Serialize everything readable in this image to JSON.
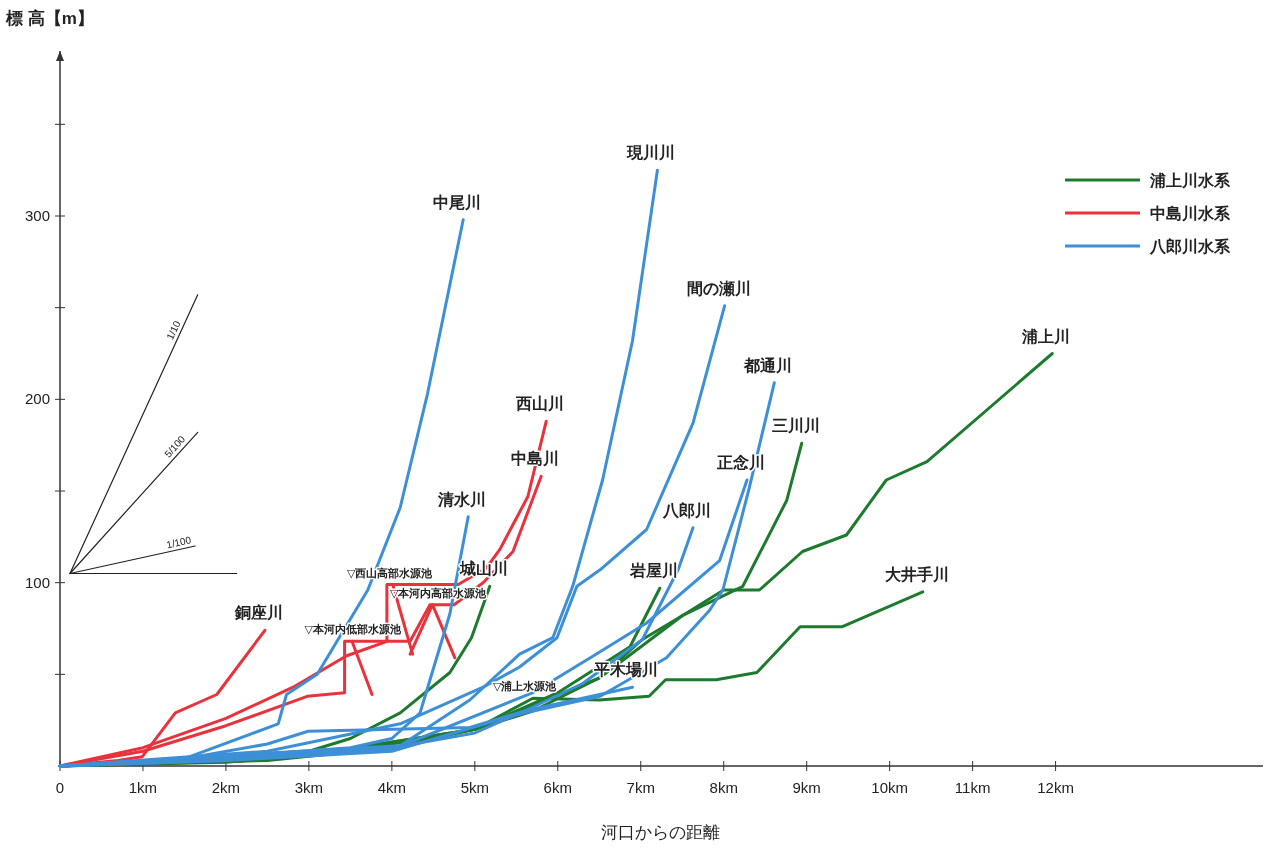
{
  "chart_data": {
    "type": "line",
    "xlabel": "河口からの距離",
    "ylabel": "標 高【m】",
    "xlim": [
      0,
      14.5
    ],
    "ylim": [
      0,
      390
    ],
    "xticks": [
      {
        "value": 0,
        "label": "0"
      },
      {
        "value": 1,
        "label": "1km"
      },
      {
        "value": 2,
        "label": "2km"
      },
      {
        "value": 3,
        "label": "3km"
      },
      {
        "value": 4,
        "label": "4km"
      },
      {
        "value": 5,
        "label": "5km"
      },
      {
        "value": 6,
        "label": "6km"
      },
      {
        "value": 7,
        "label": "7km"
      },
      {
        "value": 8,
        "label": "8km"
      },
      {
        "value": 9,
        "label": "9km"
      },
      {
        "value": 10,
        "label": "10km"
      },
      {
        "value": 11,
        "label": "11km"
      },
      {
        "value": 12,
        "label": "12km"
      }
    ],
    "yticks": [
      {
        "value": 50,
        "label": null
      },
      100,
      {
        "value": 150,
        "label": null
      },
      200,
      {
        "value": 250,
        "label": null
      },
      300,
      {
        "value": 350,
        "label": null
      }
    ],
    "grid": false,
    "legend": "top right",
    "line_style": "solid",
    "marker": "none",
    "series": [
      {
        "name": "浦上川水系",
        "color": "#1e7a2e"
      },
      {
        "name": "中島川水系",
        "color": "#e8323c"
      },
      {
        "name": "八郎川水系",
        "color": "#3d8fd6"
      },
      {
        "name": "浦上川",
        "color": "#1e7a2e",
        "x": [
          0,
          2,
          3,
          4,
          5,
          5.7,
          6.5,
          7.02,
          7.5,
          8.0,
          8.43,
          8.95,
          9.48,
          9.96,
          10.45,
          11.96
        ],
        "values": [
          0,
          2,
          6,
          12,
          20,
          30,
          48,
          69,
          82,
          96,
          96,
          117,
          126,
          156,
          166,
          225
        ]
      },
      {
        "name": "大井手川",
        "color": "#1e7a2e",
        "x": [
          0,
          2.5,
          4,
          5,
          5.7,
          6.5,
          7.1,
          7.3,
          7.91,
          8.4,
          8.92,
          9.43,
          10.4
        ],
        "values": [
          0,
          3,
          10,
          20,
          37,
          36,
          38,
          47,
          47,
          51,
          76,
          76,
          95
        ]
      },
      {
        "name": "城山川",
        "color": "#1e7a2e",
        "x": [
          0,
          3,
          3.5,
          4.1,
          4.7,
          4.96,
          5.18
        ],
        "values": [
          0,
          8,
          15,
          29,
          51,
          70,
          98
        ]
      },
      {
        "name": "岩屋川",
        "color": "#1e7a2e",
        "x": [
          0,
          3,
          5,
          6,
          6.87,
          7.23
        ],
        "values": [
          0,
          6,
          20,
          40,
          65,
          97
        ]
      },
      {
        "name": "三川川",
        "color": "#1e7a2e",
        "x": [
          0,
          3,
          5,
          6.5,
          7.5,
          8.23,
          8.76,
          8.94
        ],
        "values": [
          0,
          6,
          20,
          48,
          82,
          98,
          145,
          176
        ]
      },
      {
        "name": "銅座川",
        "color": "#e8323c",
        "x": [
          0,
          0.7,
          0.99,
          1.39,
          1.89,
          2.47
        ],
        "values": [
          0,
          3,
          5,
          29,
          39,
          74
        ]
      },
      {
        "name": "西山川",
        "color": "#e8323c",
        "x": [
          0,
          1.0,
          2.0,
          2.81,
          3.45,
          3.94,
          3.94,
          4.8,
          5.14,
          5.3,
          5.64,
          5.86
        ],
        "values": [
          0,
          10,
          26,
          43,
          60,
          68,
          99,
          99,
          108,
          118,
          147,
          188
        ]
      },
      {
        "name": "中島川",
        "color": "#e8323c",
        "x": [
          0,
          1.0,
          2.0,
          2.98,
          3.43,
          3.43,
          4.22,
          4.46,
          4.75,
          5.1,
          5.46,
          5.8
        ],
        "values": [
          0,
          8,
          22,
          38,
          40,
          68,
          68,
          88,
          88,
          100,
          117,
          158
        ]
      },
      {
        "color": "#e8323c",
        "x": [
          3.52,
          3.76
        ],
        "values": [
          68,
          39
        ]
      },
      {
        "color": "#e8323c",
        "x": [
          4.01,
          4.25
        ],
        "values": [
          99,
          61
        ]
      },
      {
        "color": "#e8323c",
        "x": [
          4.22,
          4.49,
          4.76
        ],
        "values": [
          61,
          88,
          59
        ]
      },
      {
        "name": "中尾川",
        "color": "#3d8fd6",
        "x": [
          0,
          1.5,
          2.63,
          2.73,
          3.1,
          3.71,
          4.1,
          4.43,
          4.86
        ],
        "values": [
          0,
          4,
          23,
          39,
          50,
          96,
          141,
          203,
          298
        ]
      },
      {
        "name": "清水川",
        "color": "#3d8fd6",
        "x": [
          0,
          2,
          3.5,
          4.0,
          4.34,
          4.7,
          4.92
        ],
        "values": [
          0,
          5,
          10,
          15,
          29,
          83,
          136
        ]
      },
      {
        "name": "現川川",
        "color": "#3d8fd6",
        "x": [
          0,
          2.89,
          4.1,
          4.94,
          5.54,
          5.94,
          6.18,
          6.54,
          6.9,
          7.2
        ],
        "values": [
          0,
          8,
          11,
          36,
          61,
          70,
          98,
          156,
          232,
          325
        ]
      },
      {
        "name": "間の瀬川",
        "color": "#3d8fd6",
        "x": [
          0,
          2.5,
          4.1,
          5.1,
          5.54,
          5.99,
          6.23,
          6.51,
          7.07,
          7.63,
          8.01
        ],
        "values": [
          0,
          8,
          23,
          43,
          54,
          70,
          98,
          107,
          129,
          187,
          251
        ]
      },
      {
        "name": "八郎川",
        "color": "#3d8fd6",
        "x": [
          0,
          2,
          4,
          5,
          5.6,
          6.3,
          7.02,
          7.45,
          7.63
        ],
        "values": [
          0,
          4,
          10,
          18,
          30,
          45,
          69,
          107,
          130
        ]
      },
      {
        "name": "正念川",
        "color": "#3d8fd6",
        "x": [
          0,
          2,
          4,
          5.7,
          6.5,
          7.07,
          7.95,
          8.28
        ],
        "values": [
          0,
          3,
          9,
          40,
          62,
          78,
          112,
          156
        ]
      },
      {
        "name": "都通川",
        "color": "#3d8fd6",
        "x": [
          0,
          2,
          4,
          5.5,
          6.51,
          7.31,
          7.83,
          7.99,
          8.31,
          8.61
        ],
        "values": [
          0,
          3,
          8,
          28,
          38,
          59,
          85,
          96,
          152,
          209
        ]
      },
      {
        "name": "平木場川",
        "color": "#3d8fd6",
        "x": [
          0,
          1.5,
          2.5,
          2.99,
          4.94,
          5.6,
          6.9
        ],
        "values": [
          0,
          4,
          12,
          19,
          21,
          30,
          43
        ]
      },
      {
        "color": "#222222",
        "x": [
          0.12,
          1.66
        ],
        "values": [
          105,
          257
        ]
      },
      {
        "color": "#222222",
        "x": [
          0.12,
          1.66
        ],
        "values": [
          105,
          182
        ]
      },
      {
        "color": "#222222",
        "x": [
          0.12,
          1.63
        ],
        "values": [
          105,
          120
        ]
      },
      {
        "color": "#222222",
        "x": [
          0.12,
          2.13
        ],
        "values": [
          105,
          105
        ]
      }
    ],
    "annotations": [
      {
        "text": "1/10",
        "x": 1.45,
        "y": 236
      },
      {
        "text": "5/100",
        "x": 1.45,
        "y": 171.5
      },
      {
        "text": "1/100",
        "x": 1.45,
        "y": 118
      },
      {
        "text": "▽西山高部水源池",
        "x": 3.94,
        "y": 99
      },
      {
        "text": "▽本河内高部水源池",
        "x": 4.46,
        "y": 88
      },
      {
        "text": "▽本河内低部水源池",
        "x": 3.43,
        "y": 68
      },
      {
        "text": "▽浦上水源池",
        "x": 5.7,
        "y": 37
      }
    ]
  }
}
